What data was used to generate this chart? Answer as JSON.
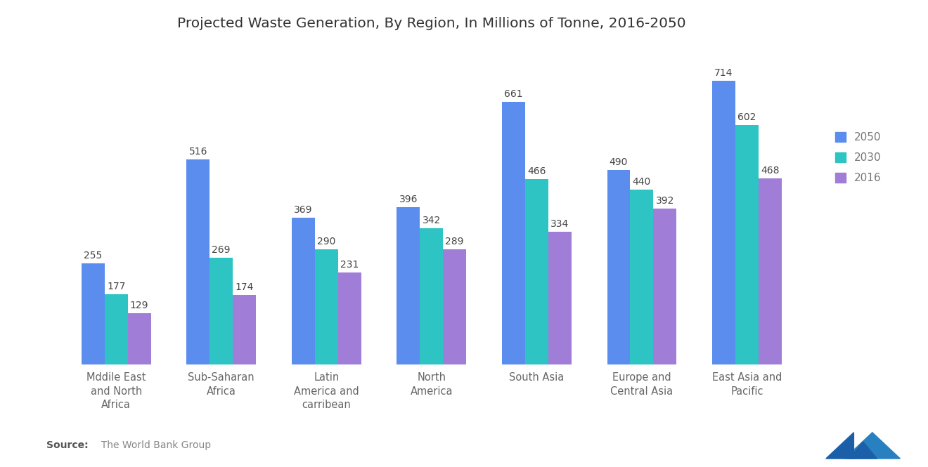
{
  "title": "Projected Waste Generation, By Region, In Millions of Tonne, 2016-2050",
  "categories": [
    "Mddile East\nand North\nAfrica",
    "Sub-Saharan\nAfrica",
    "Latin\nAmerica and\ncarribean",
    "North\nAmerica",
    "South Asia",
    "Europe and\nCentral Asia",
    "East Asia and\nPacific"
  ],
  "series": {
    "2050": [
      255,
      516,
      369,
      396,
      661,
      490,
      714
    ],
    "2030": [
      177,
      269,
      290,
      342,
      466,
      440,
      602
    ],
    "2016": [
      129,
      174,
      231,
      289,
      334,
      392,
      468
    ]
  },
  "colors": {
    "2050": "#5B8DEF",
    "2030": "#2EC4C4",
    "2016": "#A07ED8"
  },
  "bar_width": 0.22,
  "ylim": [
    0,
    800
  ],
  "source_bold": "Source:",
  "source_rest": "  The World Bank Group",
  "legend_labels": [
    "2050",
    "2030",
    "2016"
  ],
  "title_fontsize": 14.5,
  "label_fontsize": 11,
  "tick_fontsize": 10.5,
  "value_fontsize": 10,
  "background_color": "#FFFFFF"
}
